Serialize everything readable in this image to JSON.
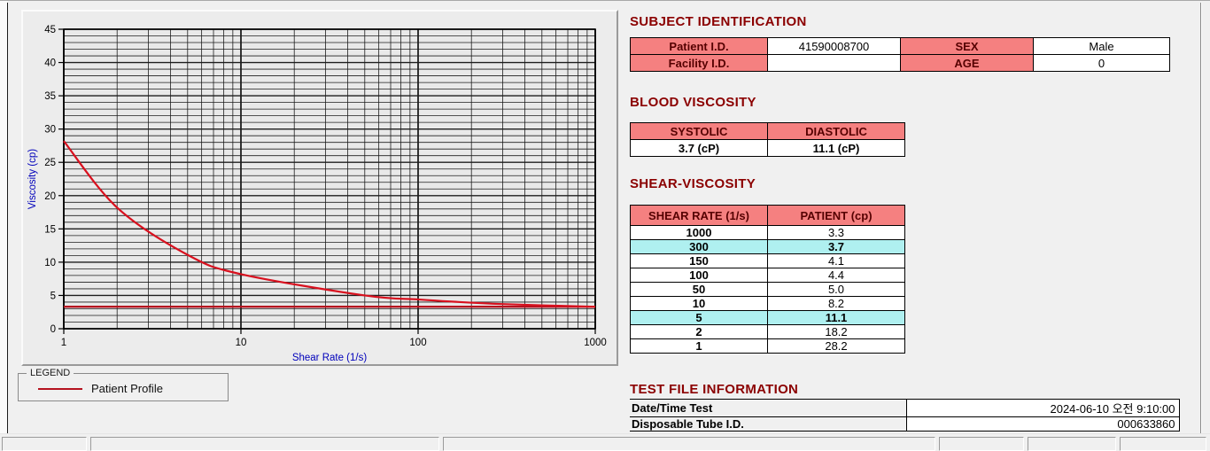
{
  "colors": {
    "header_bg": "#f58080",
    "header_text": "#550000",
    "highlight_bg": "#aff0f0",
    "title_color": "#8b0000",
    "curve_color": "#d8101e",
    "reference_color": "#b5121f",
    "axis_label_color": "#0000bb",
    "grid_color": "#1e1e1e"
  },
  "chart_data": {
    "type": "line",
    "title": "",
    "xlabel": "Shear Rate (1/s)",
    "ylabel": "Viscosity (cp)",
    "x_scale": "log",
    "xlim": [
      1,
      1000
    ],
    "ylim": [
      0,
      45
    ],
    "y_major_step": 5,
    "y_minor_step": 1,
    "x_ticks": [
      1,
      10,
      100,
      1000
    ],
    "grid": "on",
    "legend_position": "below-left",
    "series": [
      {
        "name": "Patient Profile",
        "x": [
          1,
          2,
          5,
          10,
          50,
          100,
          150,
          300,
          1000
        ],
        "y": [
          28.2,
          18.2,
          11.1,
          8.2,
          5.0,
          4.4,
          4.1,
          3.7,
          3.3
        ]
      }
    ],
    "reference_line_y": 3.3
  },
  "legend": {
    "box_label": "LEGEND",
    "entries": [
      {
        "label": "Patient Profile",
        "color": "#b5121f"
      }
    ]
  },
  "subject": {
    "title": "SUBJECT IDENTIFICATION",
    "rows": [
      {
        "label1": "Patient I.D.",
        "value1": "41590008700",
        "label2": "SEX",
        "value2": "Male"
      },
      {
        "label1": "Facility I.D.",
        "value1": "",
        "label2": "AGE",
        "value2": "0"
      }
    ]
  },
  "blood_viscosity": {
    "title": "BLOOD VISCOSITY",
    "headers": [
      "SYSTOLIC",
      "DIASTOLIC"
    ],
    "values": [
      "3.7 (cP)",
      "11.1 (cP)"
    ]
  },
  "shear_viscosity": {
    "title": "SHEAR-VISCOSITY",
    "headers": [
      "SHEAR RATE (1/s)",
      "PATIENT (cp)"
    ],
    "rows": [
      {
        "rate": "1000",
        "value": "3.3",
        "highlight": false
      },
      {
        "rate": "300",
        "value": "3.7",
        "highlight": true
      },
      {
        "rate": "150",
        "value": "4.1",
        "highlight": false
      },
      {
        "rate": "100",
        "value": "4.4",
        "highlight": false
      },
      {
        "rate": "50",
        "value": "5.0",
        "highlight": false
      },
      {
        "rate": "10",
        "value": "8.2",
        "highlight": false
      },
      {
        "rate": "5",
        "value": "11.1",
        "highlight": true
      },
      {
        "rate": "2",
        "value": "18.2",
        "highlight": false
      },
      {
        "rate": "1",
        "value": "28.2",
        "highlight": false
      }
    ]
  },
  "test_file": {
    "title": "TEST FILE INFORMATION",
    "rows": [
      {
        "label": "Date/Time Test",
        "value": "2024-06-10   오전 9:10:00"
      },
      {
        "label": "Disposable Tube I.D.",
        "value": "000633860"
      }
    ]
  }
}
